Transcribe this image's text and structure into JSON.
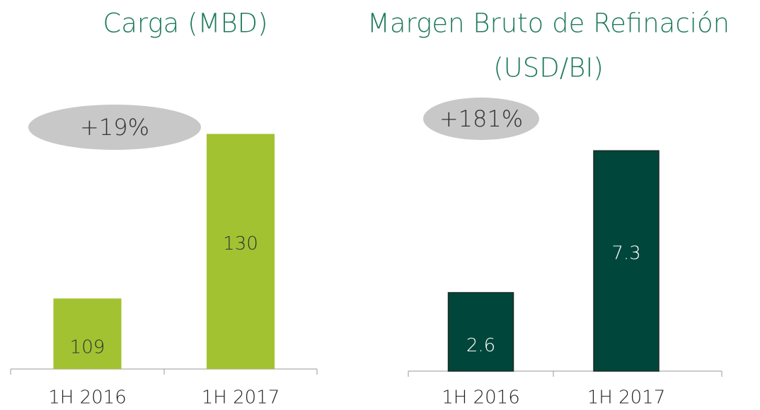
{
  "chart_data": [
    {
      "type": "bar",
      "title": [
        "Carga (MBD)"
      ],
      "categories": [
        "1H 2016",
        "1H 2017"
      ],
      "values": [
        109,
        130
      ],
      "color": "#a2c232",
      "label_color": "#333333",
      "annotation": "+19%",
      "ylim": [
        100,
        135
      ]
    },
    {
      "type": "bar",
      "title": [
        "Margen Bruto de Refinación",
        "(USD/BI)"
      ],
      "categories": [
        "1H 2016",
        "1H 2017"
      ],
      "values": [
        2.6,
        7.3
      ],
      "color": "#00463a",
      "label_color": "#ffffff",
      "annotation": "+181%",
      "ylim": [
        0,
        8.5
      ]
    }
  ]
}
